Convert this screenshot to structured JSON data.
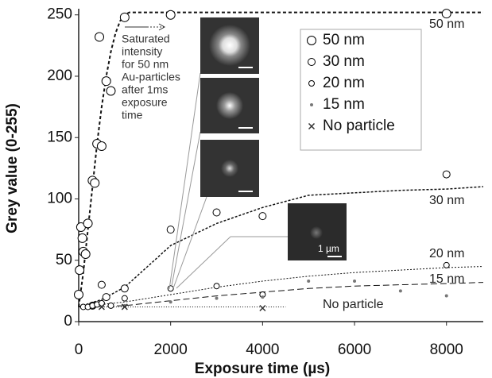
{
  "chart_data": {
    "type": "scatter",
    "xlabel": "Exposure time (µs)",
    "ylabel": "Grey value (0-255)",
    "xlim": [
      0,
      8800
    ],
    "ylim": [
      0,
      255
    ],
    "xticks": [
      0,
      2000,
      4000,
      6000,
      8000
    ],
    "yticks": [
      0,
      50,
      100,
      150,
      200,
      250
    ],
    "legend": "upper right",
    "series": [
      {
        "name": "50 nm",
        "marker": "circle",
        "size": 5.5,
        "color": "#000000",
        "x": [
          0,
          20,
          50,
          80,
          100,
          150,
          200,
          300,
          350,
          400,
          450,
          500,
          600,
          700,
          1000,
          2000,
          8000
        ],
        "values": [
          22,
          42,
          77,
          68,
          57,
          55,
          80,
          115,
          113,
          145,
          232,
          143,
          196,
          188,
          248,
          250,
          251
        ]
      },
      {
        "name": "30 nm",
        "marker": "circle",
        "size": 4.5,
        "color": "#000000",
        "x": [
          300,
          500,
          600,
          1000,
          2000,
          3000,
          4000,
          8000
        ],
        "values": [
          13,
          30,
          20,
          27,
          75,
          89,
          86,
          120
        ]
      },
      {
        "name": "20 nm",
        "marker": "circle",
        "size": 3.5,
        "color": "#000000",
        "x": [
          100,
          200,
          300,
          400,
          500,
          700,
          1000,
          2000,
          3000,
          4000,
          8000
        ],
        "values": [
          12,
          12,
          13,
          14,
          15,
          13,
          19,
          27,
          29,
          22,
          46
        ]
      },
      {
        "name": "15 nm",
        "marker": "dot",
        "size": 2,
        "color": "#777777",
        "x": [
          1000,
          2000,
          3000,
          4000,
          5000,
          6000,
          7000,
          8000
        ],
        "values": [
          13,
          16,
          19,
          20,
          33,
          33,
          25,
          21
        ]
      },
      {
        "name": "No particle",
        "marker": "cross",
        "size": 3.5,
        "color": "#333333",
        "x": [
          500,
          1000,
          4000
        ],
        "values": [
          12,
          12,
          11
        ]
      }
    ],
    "curves": [
      {
        "label": "50 nm",
        "dash": "4,3",
        "width": 2,
        "x": [
          0,
          100,
          200,
          300,
          400,
          500,
          600,
          700,
          800,
          900,
          1000,
          1100,
          2000,
          8800
        ],
        "values": [
          12,
          40,
          75,
          110,
          145,
          175,
          200,
          220,
          235,
          245,
          250,
          252,
          252,
          252
        ]
      },
      {
        "label": "30 nm",
        "dash": "3,2",
        "width": 1.5,
        "x": [
          0,
          500,
          1000,
          1500,
          2000,
          3000,
          4000,
          5000,
          6000,
          7000,
          8000,
          8800
        ],
        "values": [
          12,
          18,
          28,
          45,
          62,
          80,
          93,
          103,
          105,
          107,
          108,
          110
        ]
      },
      {
        "label": "20 nm",
        "dash": "2,2",
        "width": 1,
        "x": [
          0,
          1000,
          2000,
          3000,
          4000,
          5000,
          6000,
          7000,
          8000,
          8800
        ],
        "values": [
          12,
          16,
          22,
          28,
          33,
          37,
          40,
          42,
          44,
          45
        ]
      },
      {
        "label": "15 nm",
        "dash": "8,4",
        "width": 1,
        "x": [
          0,
          1000,
          2000,
          3000,
          4000,
          5000,
          6000,
          7000,
          8000,
          8800
        ],
        "values": [
          12,
          13,
          17,
          21,
          24,
          27,
          29,
          30,
          31,
          32
        ]
      },
      {
        "label": "No particle",
        "dash": "1,2",
        "width": 1,
        "x": [
          500,
          4500
        ],
        "values": [
          12,
          12
        ]
      }
    ],
    "annotation": [
      "Saturated",
      "intensity",
      "for 50 nm",
      "Au-particles",
      "after 1ms",
      "exposure",
      "time"
    ],
    "scale_bar_label": "1 µm"
  }
}
